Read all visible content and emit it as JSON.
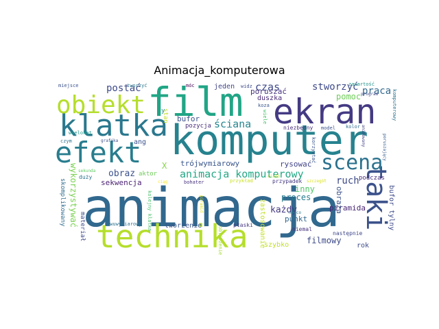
{
  "title": "Animacja_komputerowa",
  "words": [
    {
      "text": "animacja",
      "color": "#31688e"
    },
    {
      "text": "komputer",
      "color": "#26828e"
    },
    {
      "text": "film",
      "color": "#21a585"
    },
    {
      "text": "ekran",
      "color": "#443a83"
    },
    {
      "text": "technika",
      "color": "#b5de2b"
    },
    {
      "text": "klatka",
      "color": "#2a788e"
    },
    {
      "text": "efekt",
      "color": "#287d8e"
    },
    {
      "text": "obiekt",
      "color": "#b5de2b"
    },
    {
      "text": "taki",
      "color": "#3b528b"
    },
    {
      "text": "scena",
      "color": "#2c728e"
    },
    {
      "text": "animacja komputerowy",
      "color": "#22a884"
    },
    {
      "text": "postać",
      "color": "#3e4a89"
    },
    {
      "text": "czas",
      "color": "#3e4a89"
    },
    {
      "text": "stworzyć",
      "color": "#3e4a89"
    },
    {
      "text": "praca",
      "color": "#31688e"
    },
    {
      "text": "pomoc",
      "color": "#6ece58"
    },
    {
      "text": "ściana",
      "color": "#25858e"
    },
    {
      "text": "poruszać",
      "color": "#46327e"
    },
    {
      "text": "duszka",
      "color": "#482878"
    },
    {
      "text": "bufor",
      "color": "#3b528b"
    },
    {
      "text": "pozycja",
      "color": "#472d7b"
    },
    {
      "text": "trójwymiarowy",
      "color": "#39558c"
    },
    {
      "text": "rysować",
      "color": "#404387"
    },
    {
      "text": "obraz",
      "color": "#3b528b"
    },
    {
      "text": "sekwencja",
      "color": "#481f70"
    },
    {
      "text": "ruch",
      "color": "#3e4a89"
    },
    {
      "text": "inny",
      "color": "#52c569"
    },
    {
      "text": "proces",
      "color": "#287c8e"
    },
    {
      "text": "każdy",
      "color": "#443983"
    },
    {
      "text": "punkt",
      "color": "#31688e"
    },
    {
      "text": "piramida",
      "color": "#482374"
    },
    {
      "text": "filmowy",
      "color": "#3e4a89"
    },
    {
      "text": "wykorzystywać",
      "color": "#7ad151"
    },
    {
      "text": "obraza",
      "color": "#3b528b"
    },
    {
      "text": "bufor tylny",
      "color": "#3e4a89"
    },
    {
      "text": "podczas",
      "color": "#472c7a"
    },
    {
      "text": "rok",
      "color": "#3e4c8a"
    },
    {
      "text": "szybko",
      "color": "#c0df25"
    },
    {
      "text": "skomplikowany",
      "color": "#2f6c8e"
    },
    {
      "text": "materiał",
      "color": "#3e4a89"
    },
    {
      "text": "dwuwymiarowy",
      "color": "#2c718e"
    },
    {
      "text": "tworzenie",
      "color": "#39568c"
    },
    {
      "text": "płaski",
      "color": "#453781"
    },
    {
      "text": "zastosowanie",
      "color": "#c2df23"
    },
    {
      "text": "następnie",
      "color": "#3f4889"
    },
    {
      "text": "niemal",
      "color": "#46307e"
    },
    {
      "text": "obliczenie",
      "color": "#a2da37"
    },
    {
      "text": "kolejny klatka",
      "color": "#4ac16d"
    },
    {
      "text": "aktor",
      "color": "#6ece58"
    },
    {
      "text": "duży",
      "color": "#2c718e"
    },
    {
      "text": "sekunda",
      "color": "#5ec962"
    },
    {
      "text": "ang",
      "color": "#3b528b"
    },
    {
      "text": "X",
      "color": "#86d549"
    },
    {
      "text": "stan",
      "color": "#c2df23"
    },
    {
      "text": "y",
      "color": "#26828e"
    },
    {
      "text": "miejsce",
      "color": "#3b528b"
    },
    {
      "text": "tworzyć",
      "color": "#2a788e"
    },
    {
      "text": "wielokąt",
      "color": "#1f998a"
    },
    {
      "text": "móc",
      "color": "#440154"
    },
    {
      "text": "jeden",
      "color": "#404588"
    },
    {
      "text": "widz",
      "color": "#3e4c8a"
    },
    {
      "text": "zawartość",
      "color": "#21918c"
    },
    {
      "text": "koza",
      "color": "#39568c"
    },
    {
      "text": "program",
      "color": "#3e4a89"
    },
    {
      "text": "komputerowy",
      "color": "#2c718e"
    },
    {
      "text": "wiele",
      "color": "#4ac16d"
    },
    {
      "text": "niezbędny",
      "color": "#472d7b"
    },
    {
      "text": "model",
      "color": "#3b528b"
    },
    {
      "text": "kolor",
      "color": "#2f6b8e"
    },
    {
      "text": "animowany",
      "color": "#404387"
    },
    {
      "text": "poruszający",
      "color": "#365c8d"
    },
    {
      "text": "czym",
      "color": "#2c728e"
    },
    {
      "text": "grafika",
      "color": "#3b528b"
    },
    {
      "text": "korzystać",
      "color": "#39568c"
    },
    {
      "text": "przypadek",
      "color": "#453882"
    },
    {
      "text": "bohater",
      "color": "#46337f"
    },
    {
      "text": "przykład",
      "color": "#c8e020"
    },
    {
      "text": "szczegół",
      "color": "#dae319"
    },
    {
      "text": "ciąg",
      "color": "#fde725"
    },
    {
      "text": "ciało",
      "color": "#bddf26"
    },
    {
      "text": "piramid",
      "color": "#dde318"
    },
    {
      "text": "nieco",
      "color": "#2a788e"
    }
  ]
}
